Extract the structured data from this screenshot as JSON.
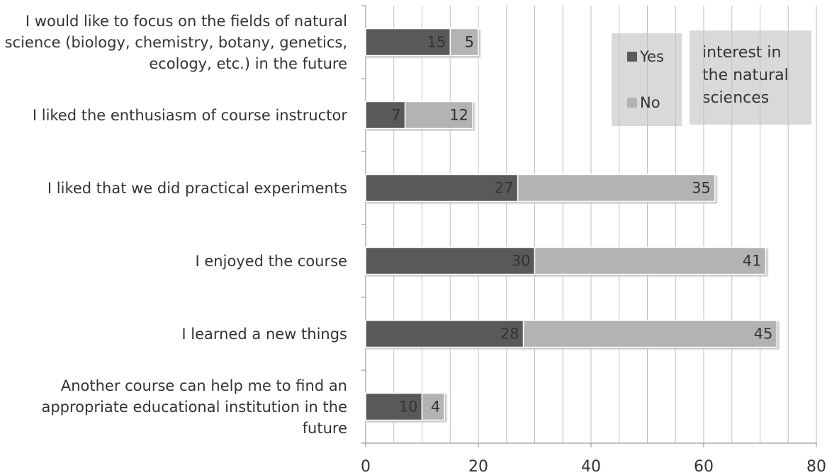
{
  "chart_data": {
    "type": "stacked_barh",
    "categories": [
      "I would like to focus on the fields of natural science (biology, chemistry, botany, genetics, ecology, etc.) in the future",
      "I liked the enthusiasm of course instructor",
      "I liked that we did practical experiments",
      "I enjoyed the course",
      "I learned a new things",
      "Another course can help me to find an appropriate educational institution in the future"
    ],
    "series": [
      {
        "name": "Yes",
        "color": "#595959",
        "values": [
          15,
          7,
          27,
          30,
          28,
          10
        ]
      },
      {
        "name": "No",
        "color": "#b3b3b3",
        "values": [
          5,
          12,
          35,
          41,
          45,
          4
        ]
      }
    ],
    "xlim": [
      0,
      80
    ],
    "xticks": [
      0,
      20,
      40,
      60,
      80
    ],
    "grid": true,
    "grid_step": 5,
    "legend_title": "interest in the natural sciences"
  }
}
